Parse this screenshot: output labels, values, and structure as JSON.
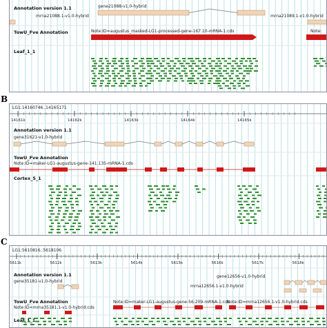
{
  "panels": [
    {
      "letter": "",
      "coord_label": "",
      "ticks": [],
      "annotation_title": "Annotation version 1.1",
      "annotation_labels": [
        "gene21088-v1.0-hybrid",
        "mrna21088.1-v1.0-hybrid",
        "mrna21089.1-v1.0-hybrid"
      ],
      "fve_title": "TowU_Fve Annotation",
      "fve_labels": [
        "Note:ID=augustus_masked-LG1-processed-gene-167.10-mRNA-1:cds",
        "Note:"
      ],
      "reads_title": "Leaf_1_1"
    },
    {
      "letter": "B",
      "coord_label": "LG1:14160746..14165171",
      "ticks": [
        "14161k",
        "14162k",
        "14163k",
        "14164k",
        "14165k"
      ],
      "annotation_title": "Annotation version 1.1",
      "annotation_labels": [
        "gene31621-v1.0-hybrid"
      ],
      "fve_title": "TowU_Fve Annotation",
      "fve_labels": [
        "Note:ID=maker-LG1-augustus-gene-141.135-mRNA-1:cds"
      ],
      "reads_title": "Cortex_5_1"
    },
    {
      "letter": "C",
      "coord_label": "LG1:5610816..5618106",
      "ticks": [
        "5611k",
        "5612k",
        "5613k",
        "5614k",
        "5615k",
        "5616k",
        "5617k",
        "5618k"
      ],
      "annotation_title": "Annotation version 1.1",
      "annotation_labels": [
        "gene35181-v1.0-hybrid",
        "gene12656-v1.0-hybrid",
        "mrna12656.1-v1.0-hybrid"
      ],
      "fve_title": "TowU_Fve Annotation",
      "fve_labels": [
        "Note:ID=mrna35181.1-v1.0-hybrid:cds",
        "Note:ID=maker-LG1-augustus-gene-56.209-mRNA-1:cds",
        "Note:ID=mrna12656.1-v1.0-hybrid:cds"
      ],
      "reads_title": "Leaf_1_1"
    }
  ],
  "colors": {
    "exon": "#f1d4b6",
    "exon_border": "#b89a7a",
    "cds": "#d01818",
    "read": "#2e8a2e",
    "grid": "#b9e2e8",
    "border": "#8a8aa0"
  }
}
